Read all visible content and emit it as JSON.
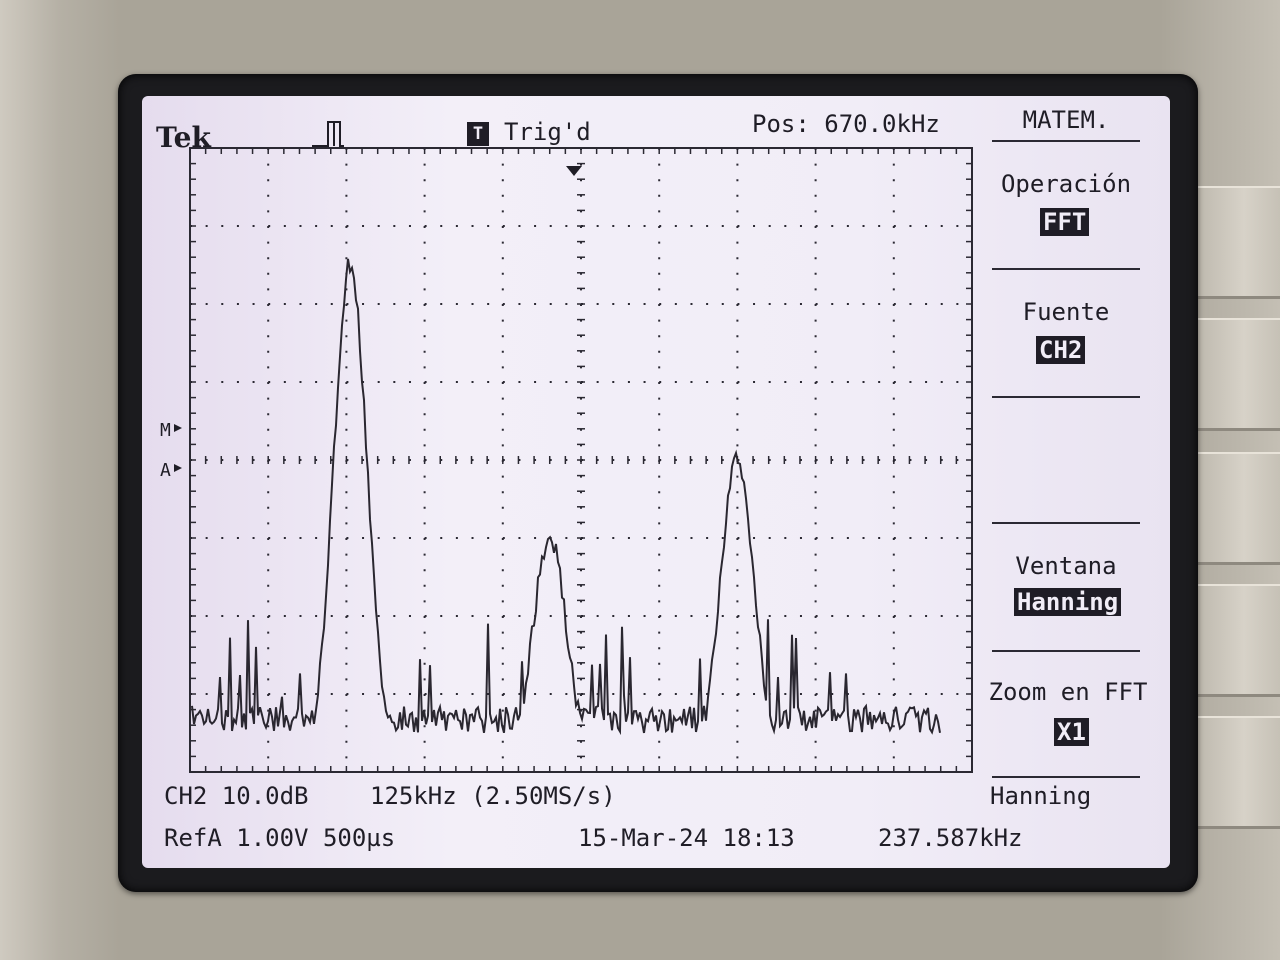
{
  "header": {
    "logo": "Tek",
    "trigger_badge": "T",
    "trigger_status": "Trig'd",
    "position": "Pos: 670.0kHz"
  },
  "markers": {
    "math": "M",
    "ref": "A"
  },
  "side_menu": {
    "title": "MATEM.",
    "operation_label": "Operación",
    "operation_value": "FFT",
    "source_label": "Fuente",
    "source_value": "CH2",
    "window_label": "Ventana",
    "window_value": "Hanning",
    "zoom_label": "Zoom en FFT",
    "zoom_value": "X1"
  },
  "status_bar": {
    "channel_scale": "CH2 10.0dB",
    "span": "125kHz (2.50MS/s)",
    "window_name": "Hanning",
    "ref_info": "RefA 1.00V 500µs",
    "date_time": "15-Mar-24 18:13",
    "frequency": "237.587kHz"
  },
  "spectrum": {
    "type": "line",
    "x_divisions": 10,
    "y_divisions": 8,
    "peaks": [
      {
        "x_div": 2.05,
        "y_div": 6.4
      },
      {
        "x_div": 4.6,
        "y_div": 2.9
      },
      {
        "x_div": 7.0,
        "y_div": 3.9
      }
    ],
    "noise_floor_div": 0.5
  }
}
